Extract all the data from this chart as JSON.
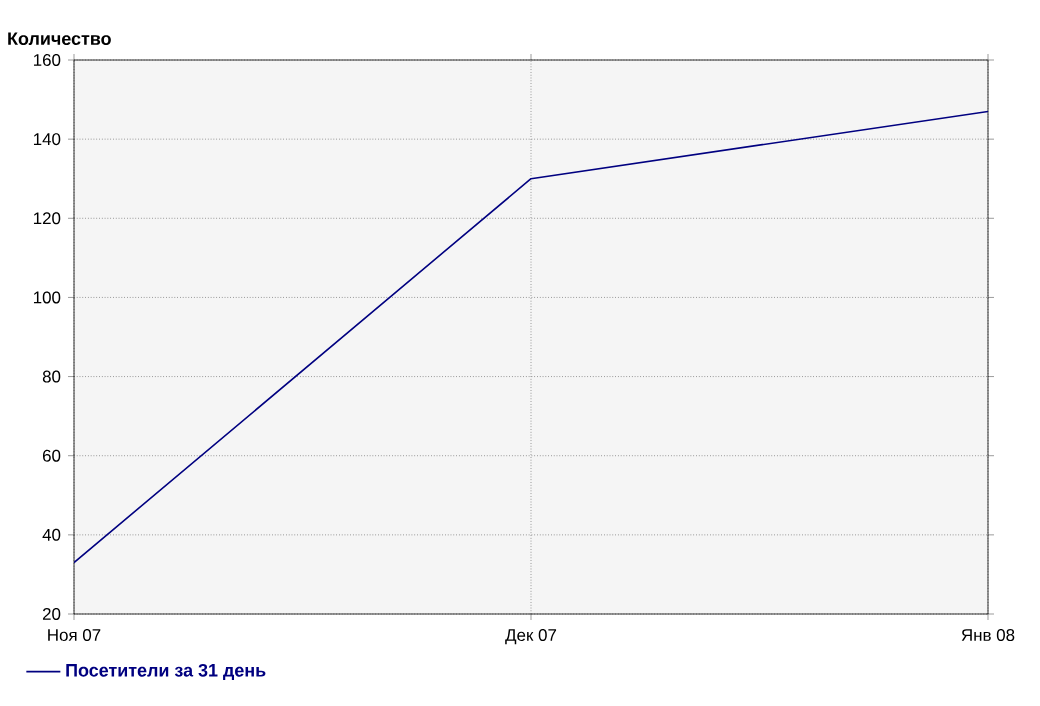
{
  "chart_data": {
    "type": "line",
    "ylabel": "Количество",
    "categories": [
      "Ноя 07",
      "Дек 07",
      "Янв 08"
    ],
    "series": [
      {
        "name": "Посетители за 31 день",
        "color": "#000080",
        "values": [
          33,
          130,
          147
        ]
      }
    ],
    "ylim": [
      20,
      160
    ],
    "yticks": [
      20,
      40,
      60,
      80,
      100,
      120,
      140,
      160
    ],
    "grid": true,
    "legend": "bottom",
    "marker": "none",
    "line_style": "solid"
  }
}
